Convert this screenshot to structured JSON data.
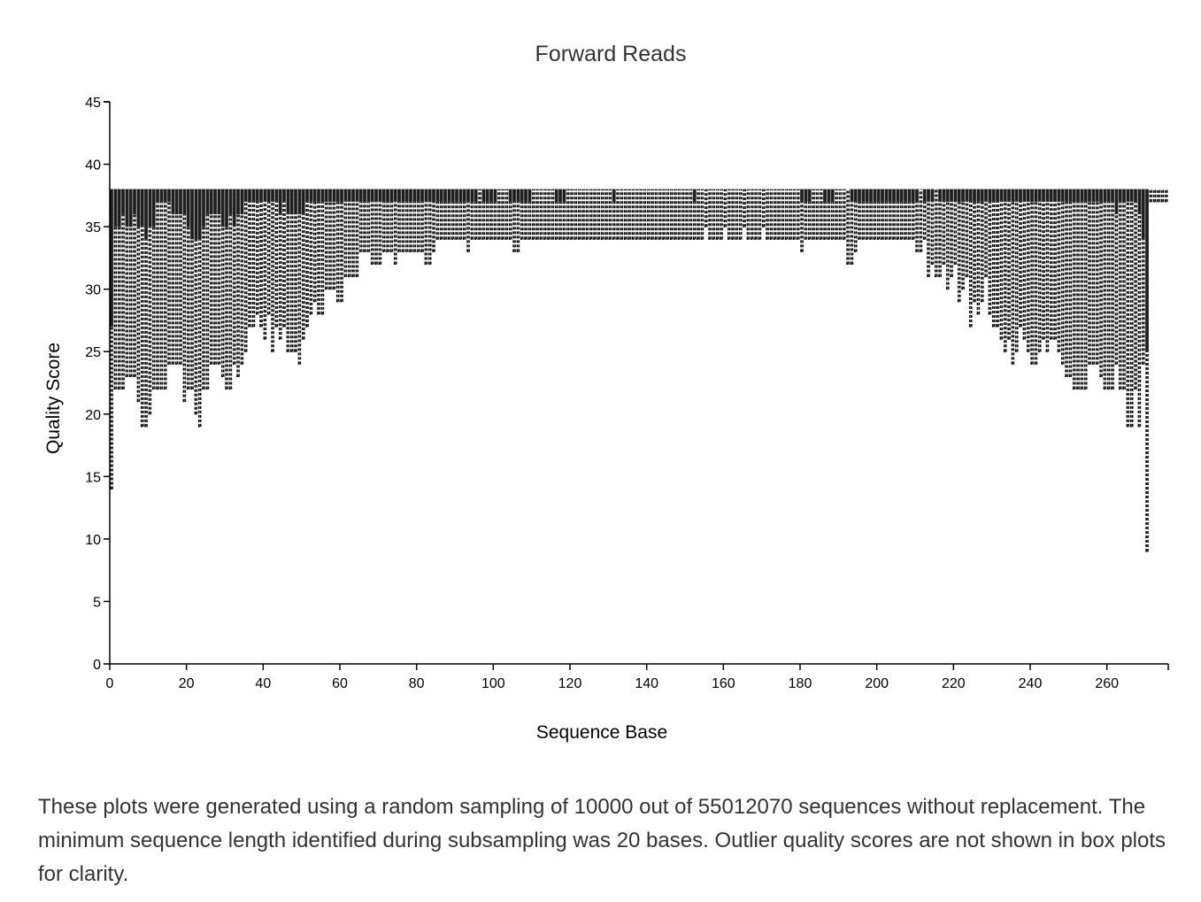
{
  "chart_data": {
    "type": "boxplot",
    "title": "Forward Reads",
    "xlabel": "Sequence Base",
    "ylabel": "Quality Score",
    "xlim": [
      0,
      276
    ],
    "ylim": [
      0,
      45
    ],
    "xticks": [
      0,
      20,
      40,
      60,
      80,
      100,
      120,
      140,
      160,
      180,
      200,
      220,
      240,
      260
    ],
    "yticks": [
      0,
      5,
      10,
      15,
      20,
      25,
      30,
      35,
      40,
      45
    ],
    "upper": 38,
    "q1": [
      27,
      35,
      35,
      36,
      35,
      35,
      36,
      35,
      35,
      34,
      35,
      35,
      37,
      37,
      37,
      37,
      36,
      36,
      36,
      36,
      35,
      34,
      34,
      34,
      35,
      36,
      36,
      36,
      36,
      35,
      35,
      36,
      35,
      36,
      36,
      37,
      37,
      37,
      37,
      37,
      37,
      37,
      37,
      37,
      36,
      37,
      36,
      36,
      36,
      36,
      36,
      37,
      37,
      37,
      37,
      37,
      37,
      37,
      37,
      37,
      37,
      37,
      37,
      37,
      37,
      37,
      37,
      37,
      37,
      37,
      37,
      37,
      37,
      37,
      37,
      37,
      37,
      37,
      37,
      37,
      37,
      37,
      37,
      37,
      37,
      37,
      37,
      37,
      37,
      37,
      37,
      37,
      37,
      37,
      37,
      37,
      38,
      37,
      37,
      37,
      37,
      38,
      38,
      38,
      37,
      37,
      37,
      37,
      37,
      37,
      38,
      38,
      38,
      38,
      38,
      38,
      37,
      37,
      37,
      38,
      38,
      38,
      38,
      38,
      38,
      38,
      38,
      38,
      38,
      38,
      38,
      37,
      38,
      38,
      38,
      38,
      38,
      38,
      38,
      38,
      38,
      38,
      38,
      38,
      38,
      38,
      38,
      38,
      38,
      38,
      38,
      38,
      37,
      38,
      38,
      38,
      38,
      38,
      38,
      38,
      38,
      38,
      38,
      38,
      38,
      38,
      38,
      38,
      38,
      38,
      38,
      38,
      38,
      38,
      38,
      38,
      38,
      38,
      38,
      38,
      37,
      37,
      37,
      38,
      38,
      38,
      37,
      37,
      37,
      38,
      38,
      38,
      38,
      37,
      37,
      37,
      37,
      37,
      37,
      37,
      37,
      37,
      37,
      37,
      37,
      37,
      37,
      37,
      37,
      37,
      37,
      38,
      37,
      37,
      37,
      38,
      37,
      37,
      37,
      37,
      37,
      37,
      37,
      37,
      37,
      37,
      37,
      37,
      37,
      37,
      37,
      37,
      37,
      37,
      37,
      37,
      37,
      37,
      37,
      37,
      37,
      37,
      37,
      37,
      37,
      37,
      37,
      37,
      37,
      37,
      37,
      37,
      37,
      37,
      37,
      37,
      37,
      37,
      37,
      37,
      37,
      37,
      36,
      37,
      37,
      37,
      37,
      37,
      36,
      34,
      25,
      38,
      38,
      38,
      38,
      38
    ],
    "min": [
      14,
      22,
      22,
      22,
      23,
      23,
      23,
      21,
      19,
      19,
      20,
      22,
      22,
      22,
      22,
      24,
      24,
      24,
      24,
      21,
      22,
      22,
      20,
      19,
      22,
      22,
      24,
      24,
      24,
      23,
      22,
      22,
      24,
      23,
      24,
      25,
      27,
      27,
      28,
      27,
      26,
      28,
      25,
      27,
      26,
      27,
      25,
      25,
      25,
      24,
      26,
      27,
      28,
      29,
      28,
      28,
      30,
      30,
      30,
      29,
      29,
      31,
      31,
      31,
      31,
      33,
      33,
      33,
      32,
      32,
      32,
      33,
      33,
      33,
      32,
      33,
      33,
      33,
      33,
      33,
      33,
      33,
      32,
      32,
      33,
      34,
      34,
      34,
      34,
      34,
      34,
      34,
      34,
      33,
      34,
      34,
      34,
      34,
      34,
      34,
      34,
      34,
      34,
      34,
      34,
      33,
      33,
      34,
      34,
      34,
      34,
      34,
      34,
      34,
      34,
      34,
      34,
      34,
      34,
      34,
      34,
      34,
      34,
      34,
      34,
      34,
      34,
      34,
      34,
      34,
      34,
      34,
      34,
      34,
      34,
      34,
      34,
      34,
      34,
      34,
      34,
      34,
      34,
      34,
      34,
      34,
      34,
      34,
      34,
      34,
      34,
      34,
      34,
      34,
      34,
      35,
      34,
      34,
      34,
      34,
      35,
      34,
      34,
      34,
      34,
      35,
      34,
      34,
      34,
      34,
      35,
      34,
      34,
      34,
      34,
      34,
      34,
      34,
      34,
      34,
      33,
      34,
      34,
      34,
      34,
      34,
      34,
      34,
      34,
      34,
      34,
      34,
      32,
      32,
      33,
      34,
      34,
      34,
      34,
      34,
      34,
      34,
      34,
      34,
      34,
      34,
      34,
      34,
      34,
      34,
      33,
      33,
      34,
      31,
      32,
      31,
      31,
      32,
      30,
      31,
      32,
      29,
      30,
      31,
      27,
      29,
      28,
      29,
      31,
      28,
      27,
      27,
      26,
      25,
      26,
      24,
      25,
      27,
      26,
      25,
      24,
      24,
      25,
      26,
      25,
      26,
      26,
      25,
      24,
      23,
      23,
      22,
      22,
      22,
      22,
      24,
      24,
      24,
      23,
      22,
      22,
      22,
      24,
      22,
      22,
      19,
      19,
      22,
      19,
      24,
      9,
      37,
      37,
      37,
      37,
      37
    ]
  },
  "caption": "These plots were generated using a random sampling of 10000 out of 55012070 sequences without replacement. The minimum sequence length identified during subsampling was 20 bases. Outlier quality scores are not shown in box plots for clarity."
}
